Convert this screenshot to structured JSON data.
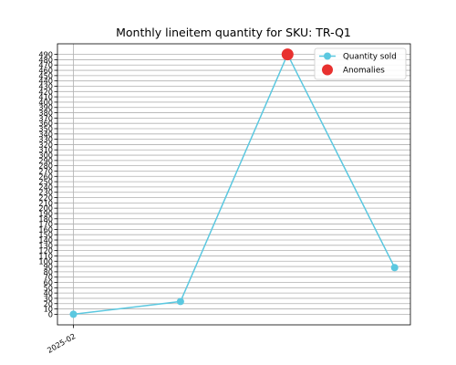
{
  "chart_data": {
    "type": "line",
    "title": "Monthly lineitem quantity for SKU: TR-Q1",
    "xlabel": "",
    "ylabel": "",
    "x_tick_labels": [
      "2025-02"
    ],
    "x_tick_label_index": [
      0
    ],
    "ylim": [
      -20,
      510
    ],
    "y_ticks": [
      0,
      10,
      20,
      30,
      40,
      50,
      60,
      70,
      80,
      90,
      100,
      110,
      120,
      130,
      140,
      150,
      160,
      170,
      180,
      190,
      200,
      210,
      220,
      230,
      240,
      250,
      260,
      270,
      280,
      290,
      300,
      310,
      320,
      330,
      340,
      350,
      360,
      370,
      380,
      390,
      400,
      410,
      420,
      430,
      440,
      450,
      460,
      470,
      480,
      490
    ],
    "grid": "horizontal and vertical at ticks",
    "legend": {
      "placement": "top-right"
    },
    "series": [
      {
        "name": "Quantity sold",
        "color": "#5bc8e0",
        "marker": "circle",
        "points": [
          [
            0,
            0
          ],
          [
            1,
            24
          ],
          [
            2,
            490
          ],
          [
            3,
            88
          ]
        ]
      },
      {
        "name": "Anomalies",
        "color": "#e8312f",
        "marker": "circle",
        "style": "scatter",
        "points": [
          [
            2,
            490
          ]
        ]
      }
    ]
  }
}
